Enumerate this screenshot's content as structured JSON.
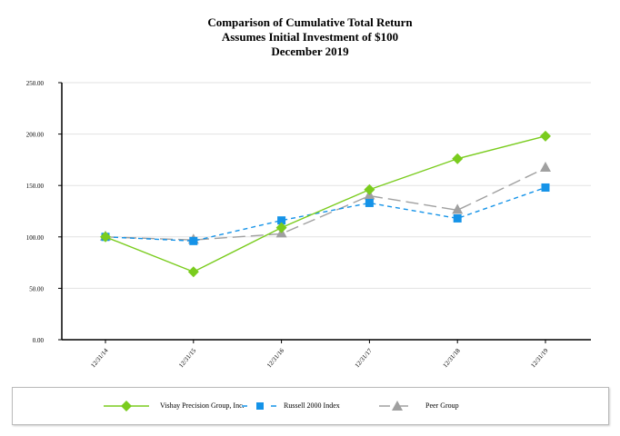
{
  "chart_data": {
    "type": "line",
    "title": [
      "Comparison of Cumulative Total Return",
      "Assumes Initial Investment of $100",
      "December 2019"
    ],
    "categories": [
      "12/31/14",
      "12/31/15",
      "12/31/16",
      "12/31/17",
      "12/31/18",
      "12/31/19"
    ],
    "ylim": [
      0,
      250
    ],
    "yticks": [
      "0.00",
      "50.00",
      "100.00",
      "150.00",
      "200.00",
      "250.00"
    ],
    "grid": true,
    "legend_position": "bottom",
    "series": [
      {
        "name": "Vishay Precision Group, Inc.",
        "values": [
          100,
          66,
          109,
          146,
          176,
          198
        ],
        "color": "#7acc1e",
        "marker": "diamond",
        "dash": ""
      },
      {
        "name": "Russell 2000 Index",
        "values": [
          100,
          96,
          116,
          133,
          118,
          148
        ],
        "color": "#1593e8",
        "marker": "square",
        "dash": "5,4"
      },
      {
        "name": "Peer Group",
        "values": [
          100,
          97,
          103,
          140,
          126,
          167
        ],
        "color": "#a0a0a0",
        "marker": "triangle",
        "dash": "14,6"
      }
    ]
  }
}
